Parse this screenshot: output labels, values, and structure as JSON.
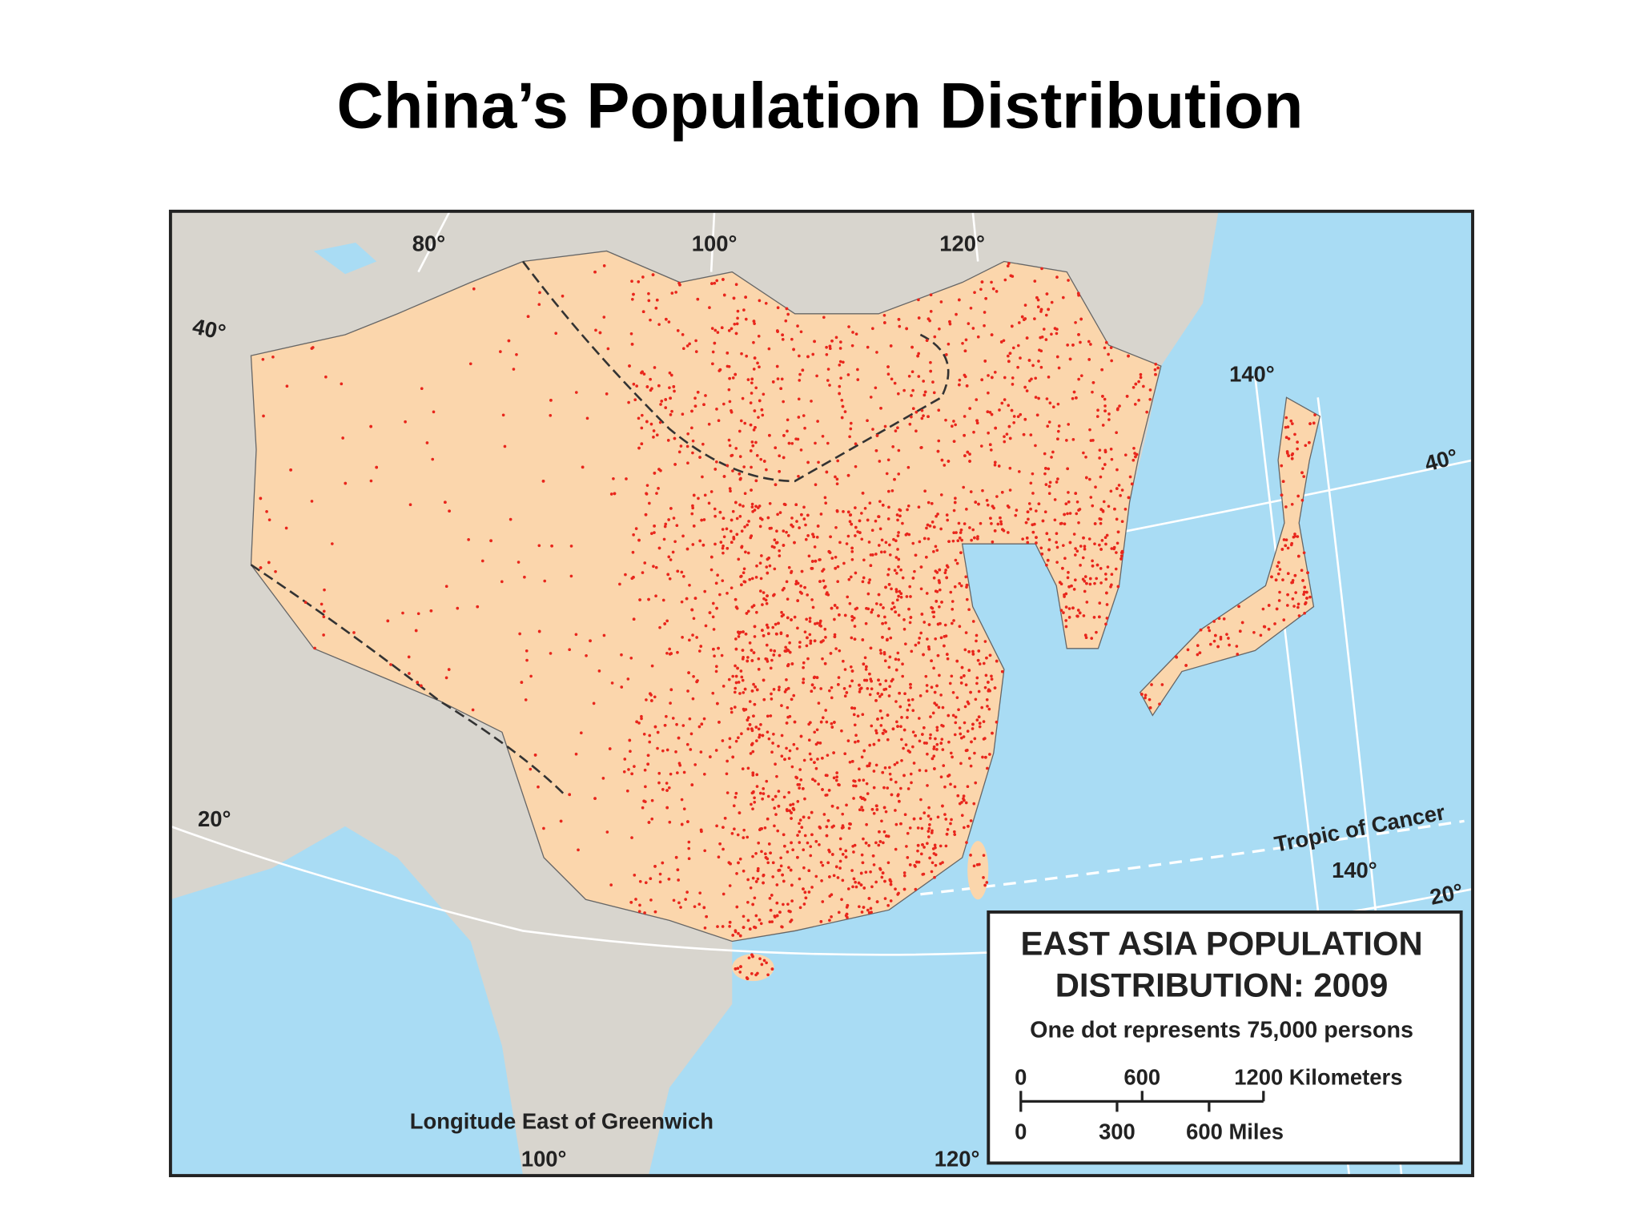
{
  "title": "China’s Population Distribution",
  "map": {
    "labels": [
      "80°",
      "100°",
      "120°",
      "140°",
      "40°",
      "40°",
      "20°",
      "20°",
      "Tropic of Cancer",
      "140°",
      "Longitude East of Greenwich",
      "100°",
      "120°"
    ],
    "legend": {
      "title": [
        "EAST ASIA POPULATION",
        "DISTRIBUTION: 2009"
      ],
      "note": "One dot represents 75,000 persons",
      "kilometers": [
        "0",
        "600",
        "1200 Kilometers"
      ],
      "miles": [
        "0",
        "300",
        "600 Miles"
      ]
    }
  }
}
